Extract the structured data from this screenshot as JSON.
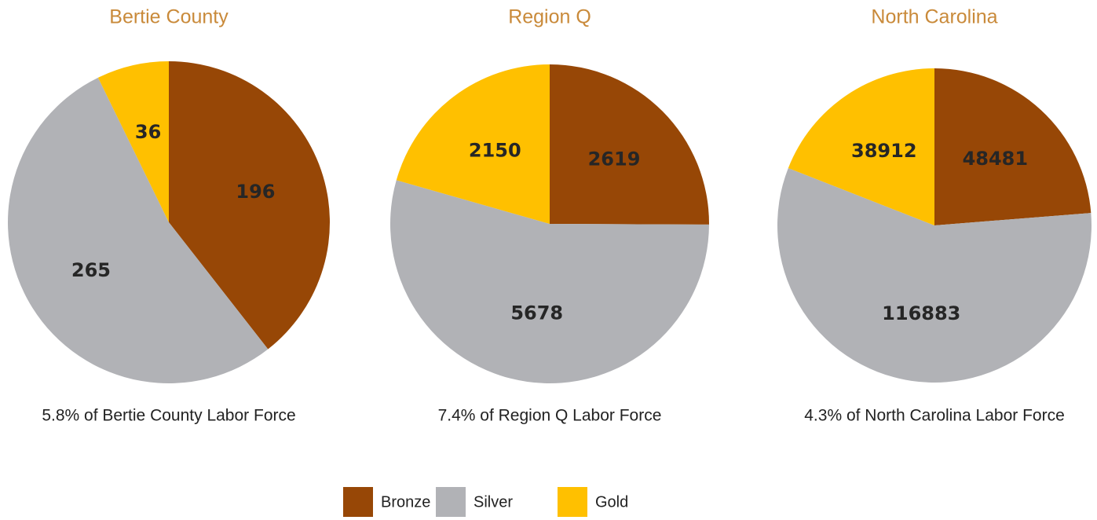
{
  "chart_data": [
    {
      "type": "pie",
      "title": "Bertie County",
      "subtitle": "5.8% of Bertie County Labor Force",
      "values": [
        196,
        265,
        36
      ]
    },
    {
      "type": "pie",
      "title": "Region Q",
      "subtitle": "7.4% of Region Q Labor Force",
      "values": [
        2619,
        5678,
        2150
      ]
    },
    {
      "type": "pie",
      "title": "North Carolina",
      "subtitle": "4.3% of North Carolina Labor Force",
      "values": [
        48481,
        116883,
        38912
      ]
    }
  ],
  "legend": [
    {
      "name": "Bronze",
      "color": "#974706"
    },
    {
      "name": "Silver",
      "color": "#b1b2b6"
    },
    {
      "name": "Gold",
      "color": "#ffc000"
    }
  ]
}
